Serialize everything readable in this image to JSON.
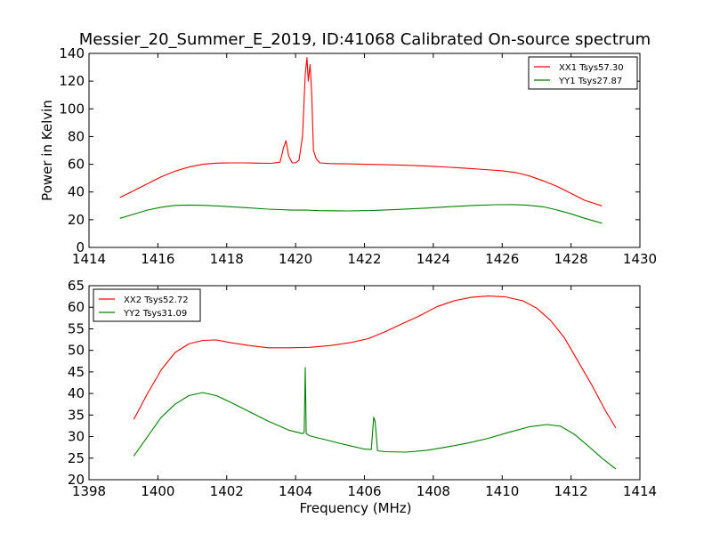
{
  "chart_data": [
    {
      "type": "line",
      "title": "Messier_20_Summer_E_2019, ID:41068 Calibrated On-source spectrum",
      "xlabel": "",
      "ylabel": "Power in Kelvin",
      "xlim": [
        1414,
        1430
      ],
      "ylim": [
        0,
        140
      ],
      "xticks": [
        "1414",
        "1416",
        "1418",
        "1420",
        "1422",
        "1424",
        "1426",
        "1428",
        "1430"
      ],
      "yticks": [
        "0",
        "20",
        "40",
        "60",
        "80",
        "100",
        "120",
        "140"
      ],
      "grid": false,
      "legend": "top-right",
      "series": [
        {
          "name": "XX1 Tsys57.30",
          "color": "#ff0000",
          "x": [
            1414.9,
            1415.3,
            1415.7,
            1416.1,
            1416.5,
            1416.9,
            1417.3,
            1417.7,
            1418.1,
            1418.5,
            1418.9,
            1419.3,
            1419.55,
            1419.65,
            1419.72,
            1419.8,
            1419.9,
            1420.0,
            1420.1,
            1420.2,
            1420.28,
            1420.33,
            1420.37,
            1420.42,
            1420.47,
            1420.52,
            1420.6,
            1420.7,
            1421.0,
            1421.5,
            1422.0,
            1422.5,
            1423.0,
            1423.5,
            1424.0,
            1424.5,
            1425.0,
            1425.5,
            1426.0,
            1426.4,
            1426.8,
            1427.2,
            1427.6,
            1428.0,
            1428.4,
            1428.9
          ],
          "y": [
            36,
            41,
            46,
            51,
            55,
            58,
            60,
            60.8,
            61,
            61,
            60.8,
            60.7,
            61.5,
            72,
            77,
            66,
            61,
            61,
            63,
            80,
            125,
            137,
            120,
            132,
            110,
            70,
            64,
            61,
            60.5,
            60.3,
            60,
            59.8,
            59.5,
            59,
            58.5,
            57.8,
            57,
            56.2,
            55.3,
            54,
            51.5,
            48,
            44,
            39,
            34,
            30
          ]
        },
        {
          "name": "YY1 Tsys27.87",
          "color": "#008000",
          "x": [
            1414.9,
            1415.3,
            1415.7,
            1416.1,
            1416.5,
            1416.9,
            1417.3,
            1417.8,
            1418.5,
            1419.2,
            1419.9,
            1420.3,
            1420.7,
            1421.5,
            1422.2,
            1423.0,
            1423.8,
            1424.5,
            1425.2,
            1425.8,
            1426.3,
            1426.7,
            1427.2,
            1427.6,
            1428.0,
            1428.4,
            1428.9
          ],
          "y": [
            21,
            24,
            27,
            29,
            30.3,
            30.6,
            30.4,
            29.8,
            28.8,
            27.6,
            26.9,
            27,
            26.5,
            26.3,
            26.6,
            27.4,
            28.4,
            29.4,
            30.3,
            30.8,
            30.9,
            30.6,
            29.3,
            27,
            24.2,
            21,
            17.5
          ]
        }
      ]
    },
    {
      "type": "line",
      "title": "",
      "xlabel": "Frequency (MHz)",
      "ylabel": "",
      "xlim": [
        1398,
        1414
      ],
      "ylim": [
        20,
        65
      ],
      "xticks": [
        "1398",
        "1400",
        "1402",
        "1404",
        "1406",
        "1408",
        "1410",
        "1412",
        "1414"
      ],
      "yticks": [
        "20",
        "25",
        "30",
        "35",
        "40",
        "45",
        "50",
        "55",
        "60",
        "65"
      ],
      "grid": false,
      "legend": "top-left",
      "series": [
        {
          "name": "XX2 Tsys52.72",
          "color": "#ff0000",
          "x": [
            1399.3,
            1399.7,
            1400.1,
            1400.5,
            1400.9,
            1401.3,
            1401.7,
            1402.1,
            1402.6,
            1403.2,
            1403.8,
            1404.4,
            1405.0,
            1405.6,
            1406.1,
            1406.6,
            1407.1,
            1407.6,
            1408.1,
            1408.6,
            1409.1,
            1409.6,
            1410.1,
            1410.6,
            1411.0,
            1411.4,
            1411.8,
            1412.2,
            1412.6,
            1413.0,
            1413.3
          ],
          "y": [
            34,
            40,
            45.5,
            49.5,
            51.5,
            52.3,
            52.4,
            51.8,
            51.2,
            50.6,
            50.6,
            50.7,
            51.1,
            51.8,
            52.7,
            54.3,
            56.2,
            58,
            60.1,
            61.5,
            62.3,
            62.6,
            62.4,
            61.5,
            59.8,
            57,
            53,
            47.5,
            42,
            36,
            32
          ]
        },
        {
          "name": "YY2 Tsys31.09",
          "color": "#008000",
          "x": [
            1399.3,
            1399.7,
            1400.1,
            1400.5,
            1400.9,
            1401.3,
            1401.7,
            1402.1,
            1402.6,
            1403.2,
            1403.8,
            1404.2,
            1404.25,
            1404.28,
            1404.31,
            1404.4,
            1404.9,
            1405.5,
            1406.0,
            1406.2,
            1406.27,
            1406.31,
            1406.38,
            1406.6,
            1407.2,
            1407.8,
            1408.4,
            1409.0,
            1409.6,
            1410.2,
            1410.8,
            1411.3,
            1411.7,
            1412.1,
            1412.5,
            1412.9,
            1413.3
          ],
          "y": [
            25.5,
            30,
            34.5,
            37.5,
            39.5,
            40.2,
            39.5,
            38,
            36,
            33.6,
            31.5,
            30.7,
            31,
            46,
            30.7,
            30.2,
            29.2,
            28,
            27.1,
            27,
            34.5,
            33.5,
            26.7,
            26.5,
            26.4,
            26.8,
            27.6,
            28.5,
            29.6,
            31,
            32.3,
            32.8,
            32.4,
            30.5,
            27.8,
            25,
            22.5
          ]
        }
      ]
    }
  ]
}
